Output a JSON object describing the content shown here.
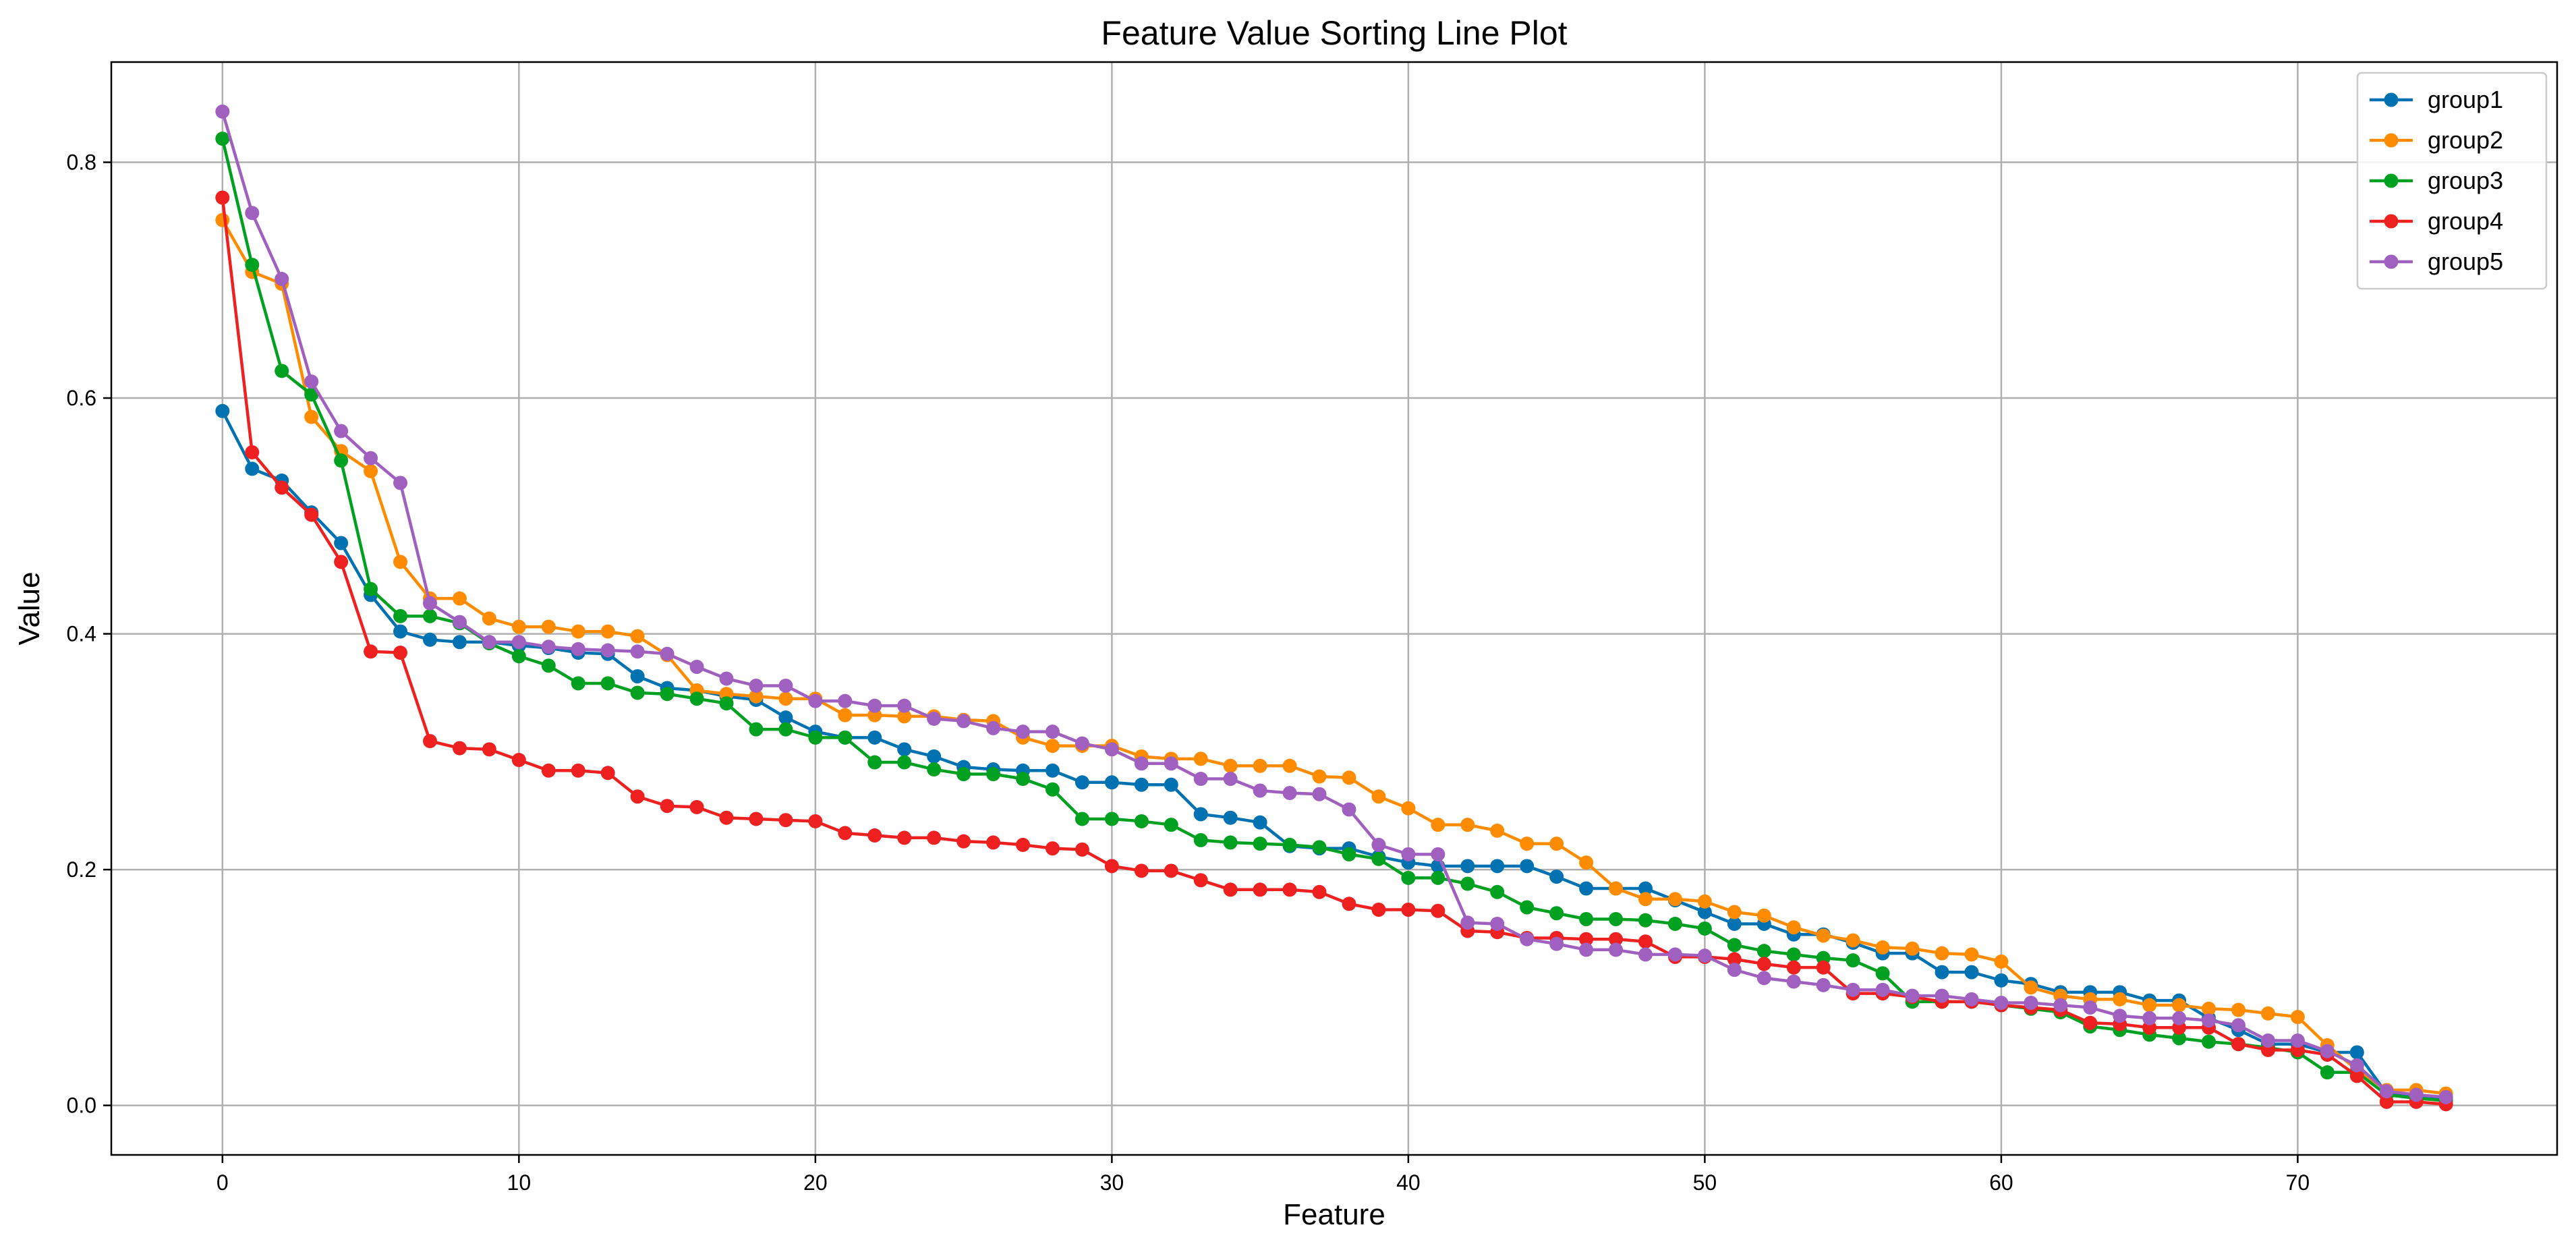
{
  "chart_data": {
    "type": "line",
    "title": "Feature Value Sorting Line Plot",
    "xlabel": "Feature",
    "ylabel": "Value",
    "xlim": [
      -3.75,
      78.75
    ],
    "ylim": [
      -0.042,
      0.885
    ],
    "xticks": [
      0,
      10,
      20,
      30,
      40,
      50,
      60,
      70
    ],
    "yticks": [
      0.0,
      0.2,
      0.4,
      0.6,
      0.8
    ],
    "xtick_labels": [
      "0",
      "10",
      "20",
      "30",
      "40",
      "50",
      "60",
      "70"
    ],
    "ytick_labels": [
      "0.0",
      "0.2",
      "0.4",
      "0.6",
      "0.8"
    ],
    "grid": true,
    "legend_position": "top-right",
    "marker": "circle",
    "series": [
      {
        "name": "group1",
        "color": "#0072B2",
        "values": [
          0.589,
          0.54,
          0.53,
          0.503,
          0.477,
          0.433,
          0.402,
          0.395,
          0.393,
          0.393,
          0.39,
          0.388,
          0.384,
          0.383,
          0.364,
          0.354,
          0.352,
          0.347,
          0.344,
          0.329,
          0.317,
          0.312,
          0.312,
          0.302,
          0.296,
          0.287,
          0.285,
          0.284,
          0.284,
          0.274,
          0.274,
          0.272,
          0.272,
          0.247,
          0.244,
          0.24,
          0.22,
          0.218,
          0.218,
          0.211,
          0.206,
          0.203,
          0.203,
          0.203,
          0.203,
          0.194,
          0.184,
          0.184,
          0.184,
          0.174,
          0.164,
          0.154,
          0.154,
          0.145,
          0.145,
          0.138,
          0.129,
          0.129,
          0.113,
          0.113,
          0.106,
          0.103,
          0.096,
          0.096,
          0.096,
          0.089,
          0.089,
          0.074,
          0.064,
          0.052,
          0.052,
          0.045,
          0.045,
          0.01,
          0.008,
          0.005
        ]
      },
      {
        "name": "group2",
        "color": "#FF8C00",
        "values": [
          0.751,
          0.707,
          0.697,
          0.584,
          0.555,
          0.538,
          0.461,
          0.43,
          0.43,
          0.413,
          0.406,
          0.406,
          0.402,
          0.402,
          0.398,
          0.382,
          0.352,
          0.349,
          0.347,
          0.345,
          0.345,
          0.331,
          0.331,
          0.33,
          0.33,
          0.327,
          0.326,
          0.312,
          0.305,
          0.305,
          0.305,
          0.296,
          0.294,
          0.294,
          0.288,
          0.288,
          0.288,
          0.279,
          0.278,
          0.262,
          0.252,
          0.238,
          0.238,
          0.233,
          0.222,
          0.222,
          0.206,
          0.184,
          0.175,
          0.175,
          0.173,
          0.164,
          0.161,
          0.151,
          0.144,
          0.14,
          0.134,
          0.133,
          0.129,
          0.128,
          0.122,
          0.1,
          0.093,
          0.09,
          0.09,
          0.085,
          0.085,
          0.082,
          0.081,
          0.078,
          0.075,
          0.051,
          0.03,
          0.013,
          0.013,
          0.01
        ]
      },
      {
        "name": "group3",
        "color": "#00A020",
        "values": [
          0.82,
          0.713,
          0.623,
          0.603,
          0.547,
          0.438,
          0.415,
          0.415,
          0.409,
          0.392,
          0.381,
          0.373,
          0.358,
          0.358,
          0.35,
          0.349,
          0.345,
          0.341,
          0.319,
          0.319,
          0.312,
          0.312,
          0.291,
          0.291,
          0.285,
          0.281,
          0.281,
          0.277,
          0.268,
          0.243,
          0.243,
          0.241,
          0.238,
          0.225,
          0.223,
          0.222,
          0.221,
          0.219,
          0.213,
          0.209,
          0.193,
          0.193,
          0.188,
          0.181,
          0.168,
          0.163,
          0.158,
          0.158,
          0.157,
          0.154,
          0.15,
          0.136,
          0.131,
          0.128,
          0.125,
          0.123,
          0.112,
          0.088,
          0.088,
          0.088,
          0.085,
          0.082,
          0.079,
          0.067,
          0.064,
          0.06,
          0.057,
          0.054,
          0.052,
          0.049,
          0.045,
          0.028,
          0.028,
          0.009,
          0.006,
          0.004
        ]
      },
      {
        "name": "group4",
        "color": "#EE2020",
        "values": [
          0.77,
          0.554,
          0.524,
          0.501,
          0.461,
          0.385,
          0.384,
          0.309,
          0.303,
          0.302,
          0.293,
          0.284,
          0.284,
          0.282,
          0.262,
          0.254,
          0.253,
          0.244,
          0.243,
          0.242,
          0.241,
          0.231,
          0.229,
          0.227,
          0.227,
          0.224,
          0.223,
          0.221,
          0.218,
          0.217,
          0.203,
          0.199,
          0.199,
          0.191,
          0.183,
          0.183,
          0.183,
          0.181,
          0.171,
          0.166,
          0.166,
          0.165,
          0.148,
          0.147,
          0.142,
          0.142,
          0.141,
          0.141,
          0.139,
          0.126,
          0.126,
          0.124,
          0.12,
          0.117,
          0.117,
          0.095,
          0.095,
          0.092,
          0.088,
          0.088,
          0.085,
          0.083,
          0.081,
          0.07,
          0.069,
          0.066,
          0.066,
          0.066,
          0.052,
          0.047,
          0.047,
          0.043,
          0.025,
          0.003,
          0.003,
          0.001
        ]
      },
      {
        "name": "group5",
        "color": "#A060C0",
        "values": [
          0.843,
          0.757,
          0.701,
          0.614,
          0.572,
          0.549,
          0.528,
          0.426,
          0.41,
          0.393,
          0.393,
          0.389,
          0.387,
          0.386,
          0.385,
          0.383,
          0.372,
          0.362,
          0.356,
          0.356,
          0.343,
          0.343,
          0.339,
          0.339,
          0.328,
          0.326,
          0.32,
          0.317,
          0.317,
          0.307,
          0.302,
          0.29,
          0.29,
          0.277,
          0.277,
          0.267,
          0.265,
          0.264,
          0.251,
          0.221,
          0.213,
          0.213,
          0.155,
          0.154,
          0.141,
          0.137,
          0.132,
          0.132,
          0.128,
          0.128,
          0.127,
          0.115,
          0.108,
          0.105,
          0.102,
          0.098,
          0.098,
          0.093,
          0.093,
          0.09,
          0.087,
          0.087,
          0.085,
          0.083,
          0.076,
          0.074,
          0.074,
          0.072,
          0.068,
          0.055,
          0.055,
          0.046,
          0.034,
          0.012,
          0.009,
          0.007
        ]
      }
    ]
  }
}
